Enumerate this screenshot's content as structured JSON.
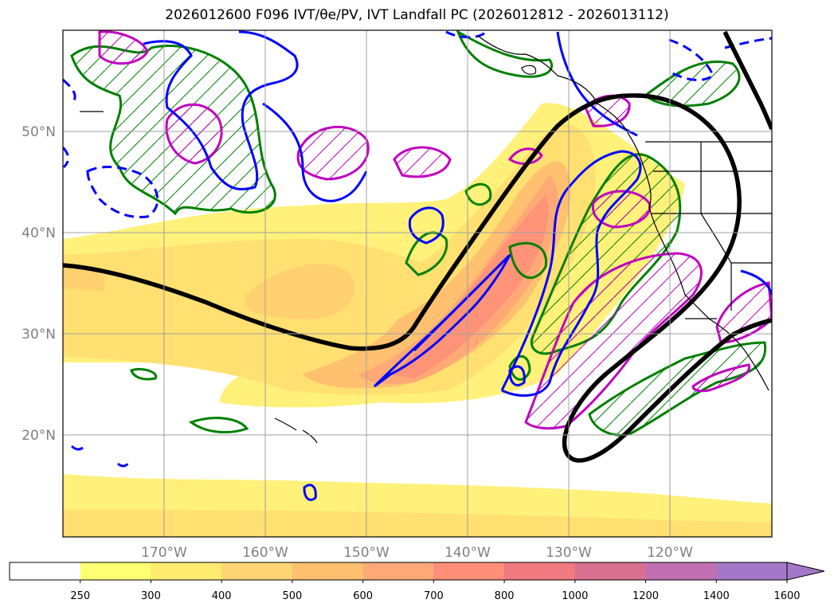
{
  "title": "2026012600 F096 IVT/θe/PV, IVT Landfall PC (2026012812 - 2026013112)",
  "map": {
    "lat_labels": [
      "50°N",
      "40°N",
      "30°N",
      "20°N"
    ],
    "lon_labels": [
      "170°W",
      "160°W",
      "150°W",
      "140°W",
      "130°W",
      "120°W"
    ],
    "lat_range": [
      10,
      60
    ],
    "lon_range": [
      -180,
      -110
    ],
    "grid": true,
    "layers": {
      "ivt_fill": "IVT shading",
      "theta_e_contour_color": "#0000ff",
      "pv_hatch_green": "#008000",
      "pv_hatch_magenta": "#c000c0",
      "landfall_pc_color": "#000000"
    }
  },
  "colorbar": {
    "ticks": [
      "250",
      "300",
      "400",
      "500",
      "600",
      "700",
      "800",
      "1000",
      "1200",
      "1400",
      "1600"
    ],
    "colors": [
      "#ffffff",
      "#ffff73",
      "#ffeb6f",
      "#ffd573",
      "#ffc070",
      "#ffa977",
      "#ff8e78",
      "#f07a80",
      "#d87090",
      "#c070b0",
      "#a478c8"
    ],
    "extend": "max"
  }
}
